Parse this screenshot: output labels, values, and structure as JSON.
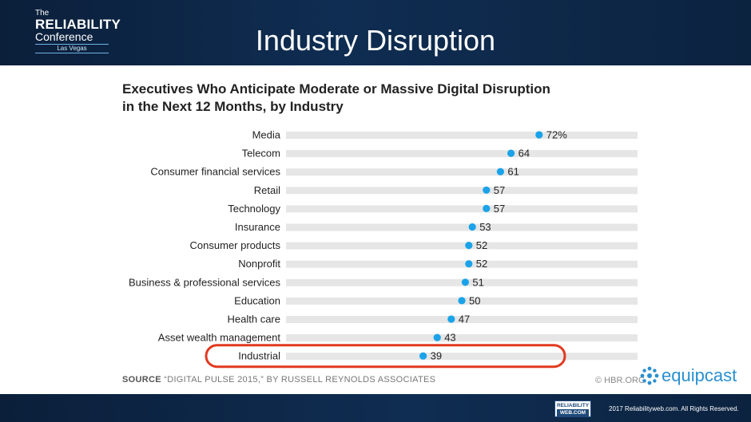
{
  "header": {
    "logo_line1": "The",
    "logo_line2": "RELIABILITY",
    "logo_line3": "Conference",
    "logo_line4": "Las Vegas",
    "slide_title": "Industry Disruption"
  },
  "chart_data": {
    "type": "scatter",
    "title_line1": "Executives Who Anticipate Moderate or Massive Digital Disruption",
    "title_line2": "in the Next 12 Months, by Industry",
    "categories": [
      "Media",
      "Telecom",
      "Consumer financial services",
      "Retail",
      "Technology",
      "Insurance",
      "Consumer products",
      "Nonprofit",
      "Business & professional services",
      "Education",
      "Health care",
      "Asset wealth management",
      "Industrial"
    ],
    "values": [
      72,
      64,
      61,
      57,
      57,
      53,
      52,
      52,
      51,
      50,
      47,
      43,
      39
    ],
    "value_labels": [
      "72%",
      "64",
      "61",
      "57",
      "57",
      "53",
      "52",
      "52",
      "51",
      "50",
      "47",
      "43",
      "39"
    ],
    "xlim": [
      0,
      100
    ],
    "highlighted": "Industrial",
    "colors": {
      "dot": "#1aa3e8",
      "track": "#e6e6e6",
      "highlight": "#e2391f"
    },
    "source_label": "SOURCE",
    "source_text": "“DIGITAL PULSE 2015,” BY RUSSELL REYNOLDS ASSOCIATES",
    "credit": "© HBR.ORG"
  },
  "brand": {
    "name": "equipcast",
    "icon": "equipcast-logo-icon"
  },
  "footer": {
    "rw_logo_line1": "RELIABILITY",
    "rw_logo_line2": "WEB.COM",
    "copyright": "2017 Reliabilityweb.com. All Rights Reserved."
  }
}
